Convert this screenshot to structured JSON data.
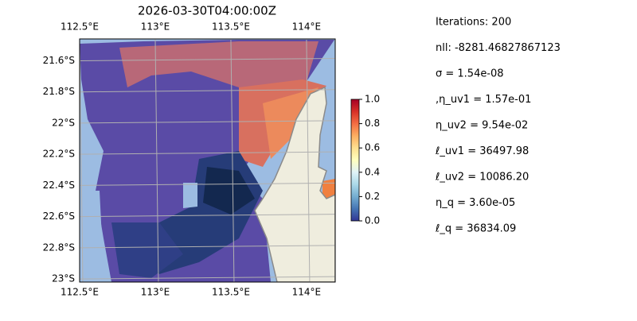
{
  "map": {
    "title": "2026-03-30T04:00:00Z",
    "xlim": [
      112.5,
      114.19
    ],
    "ylim": [
      23.02,
      21.46
    ],
    "lon_ticks": [
      {
        "value": 112.5,
        "label": "112.5°E"
      },
      {
        "value": 113,
        "label": "113°E"
      },
      {
        "value": 113.5,
        "label": "113.5°E"
      },
      {
        "value": 114,
        "label": "114°E"
      }
    ],
    "lat_ticks": [
      {
        "value": 21.6,
        "label": "21.6°S"
      },
      {
        "value": 21.8,
        "label": "21.8°S"
      },
      {
        "value": 22,
        "label": "22°S"
      },
      {
        "value": 22.2,
        "label": "22.2°S"
      },
      {
        "value": 22.4,
        "label": "22.4°S"
      },
      {
        "value": 22.6,
        "label": "22.6°S"
      },
      {
        "value": 22.8,
        "label": "22.8°S"
      },
      {
        "value": 23,
        "label": "23°S"
      }
    ]
  },
  "colorbar": {
    "clim": [
      0,
      1
    ],
    "ticks": [
      {
        "value": 0,
        "label": "0.0"
      },
      {
        "value": 0.2,
        "label": "0.2"
      },
      {
        "value": 0.4,
        "label": "0.4"
      },
      {
        "value": 0.6,
        "label": "0.6"
      },
      {
        "value": 0.8,
        "label": "0.8"
      },
      {
        "value": 1,
        "label": "1.0"
      }
    ]
  },
  "stats": {
    "lines": [
      "Iterations: 200",
      "nll: -8281.46827867123",
      "σ = 1.54e-08",
      ",η_uv1 = 1.57e-01",
      "η_uv2 = 9.54e-02",
      "ℓ_uv1 = 36497.98",
      "ℓ_uv2 = 10086.20",
      "η_q = 3.60e-05",
      "ℓ_q = 36834.09"
    ]
  }
}
